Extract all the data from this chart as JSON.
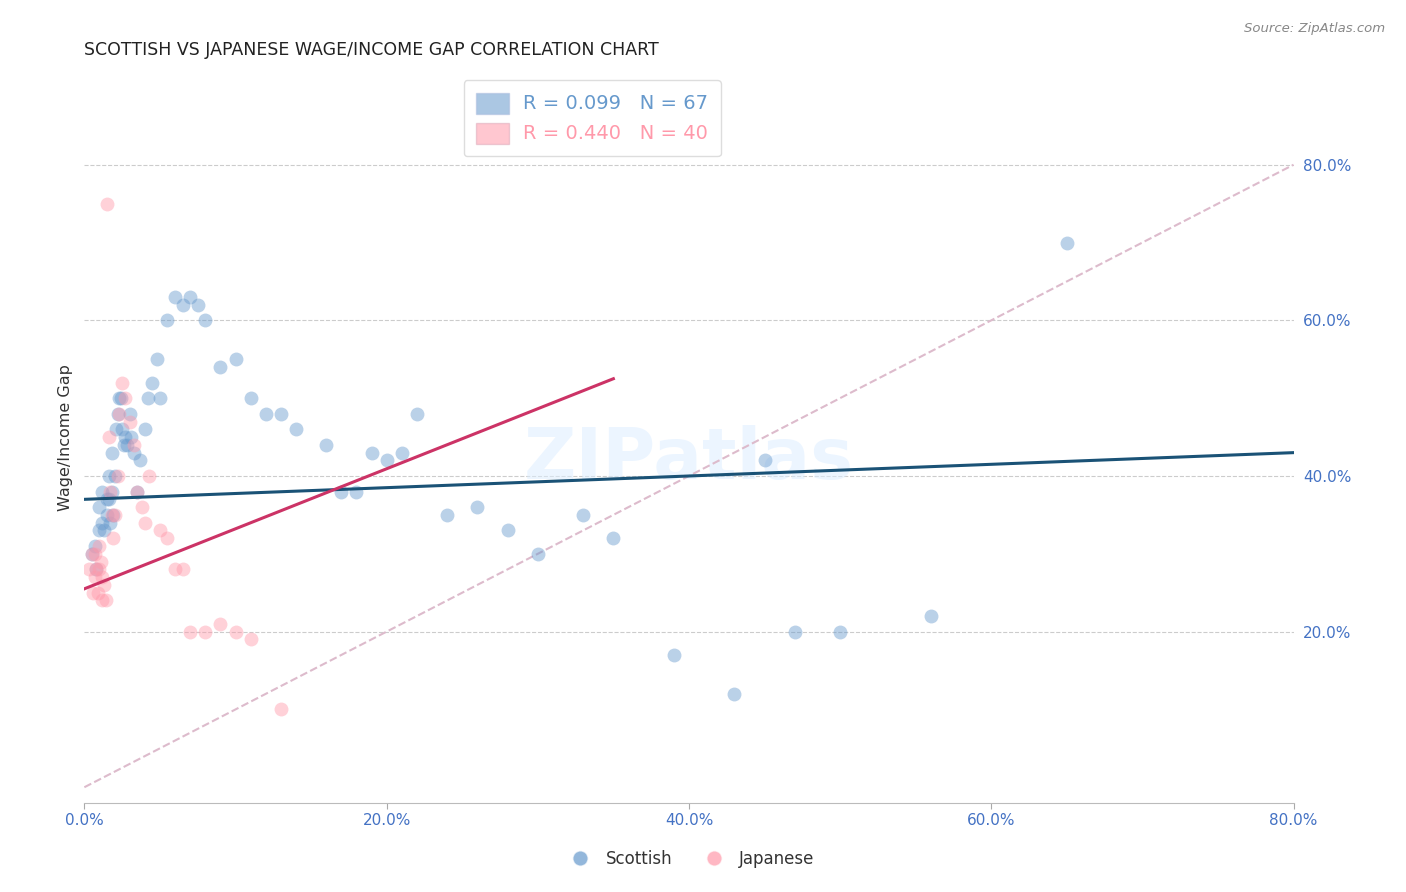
{
  "title": "SCOTTISH VS JAPANESE WAGE/INCOME GAP CORRELATION CHART",
  "source": "Source: ZipAtlas.com",
  "ylabel": "Wage/Income Gap",
  "xlim": [
    0.0,
    0.8
  ],
  "ylim": [
    -0.02,
    0.92
  ],
  "yticks": [
    0.2,
    0.4,
    0.6,
    0.8
  ],
  "xticks": [
    0.0,
    0.2,
    0.4,
    0.6,
    0.8
  ],
  "xtick_labels": [
    "0.0%",
    "20.0%",
    "40.0%",
    "60.0%",
    "80.0%"
  ],
  "ytick_labels": [
    "20.0%",
    "40.0%",
    "60.0%",
    "80.0%"
  ],
  "background_color": "#ffffff",
  "tick_color": "#4472c4",
  "grid_color": "#cccccc",
  "scottish_color": "#6699cc",
  "japanese_color": "#ff99aa",
  "legend_R_scottish": "R = 0.099",
  "legend_N_scottish": "N = 67",
  "legend_R_japanese": "R = 0.440",
  "legend_N_japanese": "N = 40",
  "scottish_x": [
    0.005,
    0.007,
    0.008,
    0.01,
    0.01,
    0.012,
    0.012,
    0.013,
    0.015,
    0.015,
    0.016,
    0.016,
    0.017,
    0.018,
    0.018,
    0.019,
    0.02,
    0.021,
    0.022,
    0.023,
    0.024,
    0.025,
    0.026,
    0.027,
    0.028,
    0.03,
    0.031,
    0.033,
    0.035,
    0.037,
    0.04,
    0.042,
    0.045,
    0.048,
    0.05,
    0.055,
    0.06,
    0.065,
    0.07,
    0.075,
    0.08,
    0.09,
    0.1,
    0.11,
    0.12,
    0.13,
    0.14,
    0.16,
    0.17,
    0.18,
    0.19,
    0.2,
    0.21,
    0.22,
    0.24,
    0.26,
    0.28,
    0.3,
    0.33,
    0.35,
    0.39,
    0.43,
    0.45,
    0.47,
    0.5,
    0.56,
    0.65
  ],
  "scottish_y": [
    0.3,
    0.31,
    0.28,
    0.36,
    0.33,
    0.38,
    0.34,
    0.33,
    0.37,
    0.35,
    0.4,
    0.37,
    0.34,
    0.43,
    0.38,
    0.35,
    0.4,
    0.46,
    0.48,
    0.5,
    0.5,
    0.46,
    0.44,
    0.45,
    0.44,
    0.48,
    0.45,
    0.43,
    0.38,
    0.42,
    0.46,
    0.5,
    0.52,
    0.55,
    0.5,
    0.6,
    0.63,
    0.62,
    0.63,
    0.62,
    0.6,
    0.54,
    0.55,
    0.5,
    0.48,
    0.48,
    0.46,
    0.44,
    0.38,
    0.38,
    0.43,
    0.42,
    0.43,
    0.48,
    0.35,
    0.36,
    0.33,
    0.3,
    0.35,
    0.32,
    0.17,
    0.12,
    0.42,
    0.2,
    0.2,
    0.22,
    0.7
  ],
  "japanese_x": [
    0.003,
    0.005,
    0.006,
    0.007,
    0.007,
    0.008,
    0.009,
    0.01,
    0.01,
    0.011,
    0.012,
    0.012,
    0.013,
    0.014,
    0.015,
    0.016,
    0.017,
    0.018,
    0.019,
    0.02,
    0.022,
    0.023,
    0.025,
    0.027,
    0.03,
    0.033,
    0.035,
    0.038,
    0.04,
    0.043,
    0.05,
    0.055,
    0.06,
    0.065,
    0.07,
    0.08,
    0.09,
    0.1,
    0.11,
    0.13
  ],
  "japanese_y": [
    0.28,
    0.3,
    0.25,
    0.3,
    0.27,
    0.28,
    0.25,
    0.31,
    0.28,
    0.29,
    0.27,
    0.24,
    0.26,
    0.24,
    0.75,
    0.45,
    0.38,
    0.35,
    0.32,
    0.35,
    0.4,
    0.48,
    0.52,
    0.5,
    0.47,
    0.44,
    0.38,
    0.36,
    0.34,
    0.4,
    0.33,
    0.32,
    0.28,
    0.28,
    0.2,
    0.2,
    0.21,
    0.2,
    0.19,
    0.1
  ],
  "scottish_trend_x": [
    0.0,
    0.8
  ],
  "scottish_trend_y": [
    0.37,
    0.43
  ],
  "japanese_trend_x": [
    0.0,
    0.35
  ],
  "japanese_trend_y": [
    0.255,
    0.525
  ],
  "diag_color": "#ddbbcc",
  "scottish_trend_color": "#1a5276",
  "japanese_trend_color": "#cc3366",
  "marker_size": 100,
  "marker_alpha": 0.45,
  "marker_linewidth": 1.2
}
